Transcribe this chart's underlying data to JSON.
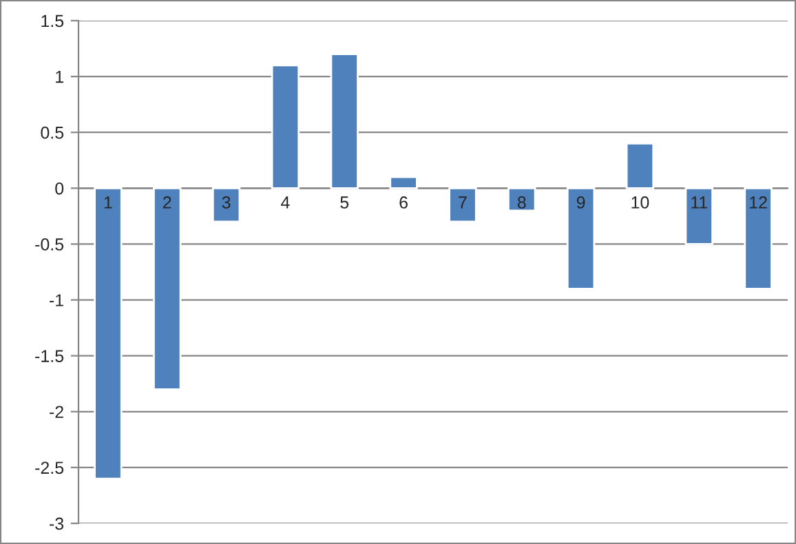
{
  "chart_data": {
    "type": "bar",
    "categories": [
      "1",
      "2",
      "3",
      "4",
      "5",
      "6",
      "7",
      "8",
      "9",
      "10",
      "11",
      "12"
    ],
    "values": [
      -2.6,
      -1.8,
      -0.3,
      1.1,
      1.2,
      0.1,
      -0.3,
      -0.2,
      -0.9,
      0.4,
      -0.5,
      -0.9
    ],
    "color": "#4f81bd",
    "ylim": [
      -3,
      1.5
    ],
    "yticks": [
      -3,
      -2.5,
      -2,
      -1.5,
      -1,
      -0.5,
      0,
      0.5,
      1,
      1.5
    ],
    "grid": "y",
    "legend": false
  }
}
